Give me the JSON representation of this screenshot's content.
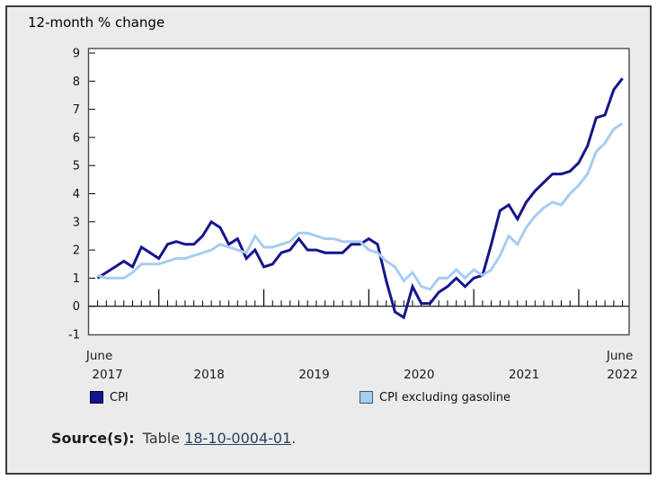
{
  "title": "12-month % change",
  "colors": {
    "background": "#ebebeb",
    "plot_background": "#ffffff",
    "frame": "#4a4a4a",
    "axis": "#000000",
    "cpi_line": "#15158c",
    "cpi_ex_gas_line": "#a5cdf0",
    "link": "#284162",
    "text": "#111111"
  },
  "y_axis": {
    "tick_labels": [
      "9",
      "8",
      "7",
      "6",
      "5",
      "4",
      "3",
      "2",
      "1",
      "0",
      "-1"
    ]
  },
  "x_axis": {
    "start_month_label": "June",
    "start_year_label": "2017",
    "end_month_label": "June",
    "end_year_label": "2022",
    "mid_year_labels": [
      "2018",
      "2019",
      "2020",
      "2021"
    ]
  },
  "legend": [
    {
      "label": "CPI",
      "color": "#15158c",
      "border": "#00004f"
    },
    {
      "label": "CPI excluding gasoline",
      "color": "#a5cdf0",
      "border": "#44576b"
    }
  ],
  "source": {
    "label": "Source(s):",
    "table_text": "Table",
    "link_text": "18-10-0004-01",
    "suffix": "."
  },
  "chart_data": {
    "type": "line",
    "title": "12-month % change",
    "x_start": "2017-06",
    "x_end": "2022-06",
    "frequency": "monthly",
    "ylim": [
      -1,
      9
    ],
    "y_tick_step": 1,
    "grid": false,
    "legend_position": "bottom",
    "series": [
      {
        "name": "CPI",
        "color": "#15158c",
        "values": [
          1.0,
          1.2,
          1.4,
          1.6,
          1.4,
          2.1,
          1.9,
          1.7,
          2.2,
          2.3,
          2.2,
          2.2,
          2.5,
          3.0,
          2.8,
          2.2,
          2.4,
          1.7,
          2.0,
          1.4,
          1.5,
          1.9,
          2.0,
          2.4,
          2.0,
          2.0,
          1.9,
          1.9,
          1.9,
          2.2,
          2.2,
          2.4,
          2.2,
          0.9,
          -0.2,
          -0.4,
          0.7,
          0.1,
          0.1,
          0.5,
          0.7,
          1.0,
          0.7,
          1.0,
          1.1,
          2.2,
          3.4,
          3.6,
          3.1,
          3.7,
          4.1,
          4.4,
          4.7,
          4.7,
          4.8,
          5.1,
          5.7,
          6.7,
          6.8,
          7.7,
          8.1
        ]
      },
      {
        "name": "CPI excluding gasoline",
        "color": "#a5cdf0",
        "values": [
          1.1,
          1.0,
          1.0,
          1.0,
          1.2,
          1.5,
          1.5,
          1.5,
          1.6,
          1.7,
          1.7,
          1.8,
          1.9,
          2.0,
          2.2,
          2.1,
          2.0,
          1.9,
          2.5,
          2.1,
          2.1,
          2.2,
          2.3,
          2.6,
          2.6,
          2.5,
          2.4,
          2.4,
          2.3,
          2.3,
          2.3,
          2.0,
          1.9,
          1.6,
          1.4,
          0.9,
          1.2,
          0.7,
          0.6,
          1.0,
          1.0,
          1.3,
          1.0,
          1.3,
          1.1,
          1.3,
          1.8,
          2.5,
          2.2,
          2.8,
          3.2,
          3.5,
          3.7,
          3.6,
          4.0,
          4.3,
          4.7,
          5.5,
          5.8,
          6.3,
          6.5
        ]
      }
    ]
  }
}
